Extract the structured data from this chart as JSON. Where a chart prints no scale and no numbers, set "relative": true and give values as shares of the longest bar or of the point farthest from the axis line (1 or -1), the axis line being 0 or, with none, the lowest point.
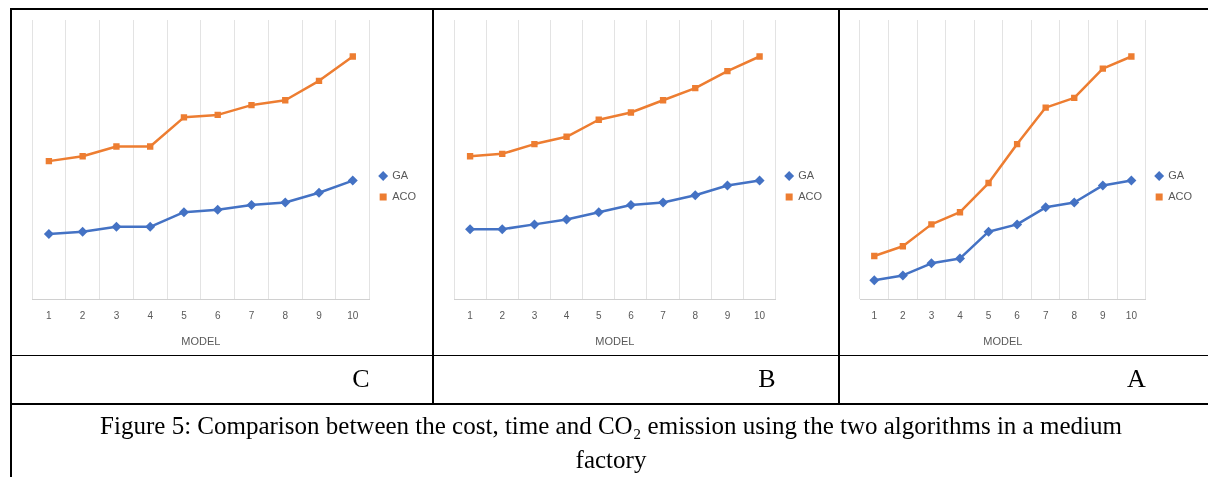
{
  "chart_data": [
    {
      "type": "line",
      "title": "C",
      "xlabel": "MODEL",
      "categories": [
        "1",
        "2",
        "3",
        "4",
        "5",
        "6",
        "7",
        "8",
        "9",
        "10"
      ],
      "relative": true,
      "grid": "x",
      "legend": "right",
      "line_style": "solid",
      "series": [
        {
          "name": "GA",
          "color": "#4472c4",
          "marker": "diamond",
          "values": [
            0.27,
            0.28,
            0.3,
            0.3,
            0.36,
            0.37,
            0.39,
            0.4,
            0.44,
            0.49
          ]
        },
        {
          "name": "ACO",
          "color": "#ed7d31",
          "marker": "square",
          "values": [
            0.57,
            0.59,
            0.63,
            0.63,
            0.75,
            0.76,
            0.8,
            0.82,
            0.9,
            1
          ]
        }
      ]
    },
    {
      "type": "line",
      "title": "B",
      "xlabel": "MODEL",
      "categories": [
        "1",
        "2",
        "3",
        "4",
        "5",
        "6",
        "7",
        "8",
        "9",
        "10"
      ],
      "relative": true,
      "grid": "x",
      "legend": "right",
      "line_style": "solid",
      "series": [
        {
          "name": "GA",
          "color": "#4472c4",
          "marker": "diamond",
          "values": [
            0.29,
            0.29,
            0.31,
            0.33,
            0.36,
            0.39,
            0.4,
            0.43,
            0.47,
            0.49
          ]
        },
        {
          "name": "ACO",
          "color": "#ed7d31",
          "marker": "square",
          "values": [
            0.59,
            0.6,
            0.64,
            0.67,
            0.74,
            0.77,
            0.82,
            0.87,
            0.94,
            1
          ]
        }
      ]
    },
    {
      "type": "line",
      "title": "A",
      "xlabel": "MODEL",
      "categories": [
        "1",
        "2",
        "3",
        "4",
        "5",
        "6",
        "7",
        "8",
        "9",
        "10"
      ],
      "relative": true,
      "grid": "x",
      "legend": "right",
      "line_style": "solid",
      "series": [
        {
          "name": "GA",
          "color": "#4472c4",
          "marker": "diamond",
          "values": [
            0.08,
            0.1,
            0.15,
            0.17,
            0.28,
            0.31,
            0.38,
            0.4,
            0.47,
            0.49
          ]
        },
        {
          "name": "ACO",
          "color": "#ed7d31",
          "marker": "square",
          "values": [
            0.18,
            0.22,
            0.31,
            0.36,
            0.48,
            0.64,
            0.79,
            0.83,
            0.95,
            1
          ]
        }
      ]
    },
    {
      "type": "other",
      "title": "Figure 5: Comparison between the cost, time and CO₂ emission using the two algorithms in a medium factory"
    }
  ]
}
